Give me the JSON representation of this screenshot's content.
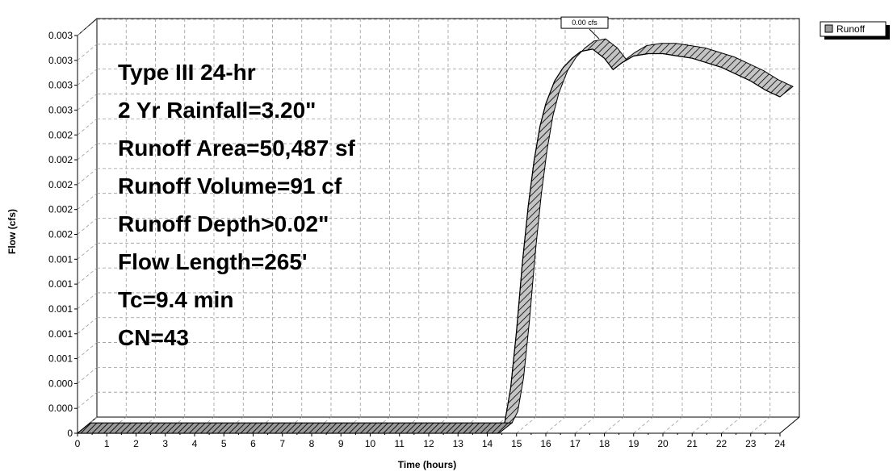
{
  "chart_data": {
    "type": "area",
    "title": "",
    "xlabel": "Time  (hours)",
    "ylabel": "Flow  (cfs)",
    "xlim": [
      0,
      24
    ],
    "x_ticks": [
      "0",
      "1",
      "2",
      "3",
      "4",
      "5",
      "6",
      "7",
      "8",
      "9",
      "10",
      "11",
      "12",
      "13",
      "14",
      "15",
      "16",
      "17",
      "18",
      "19",
      "20",
      "21",
      "22",
      "23",
      "24"
    ],
    "ylim": [
      0,
      0.0035
    ],
    "y_ticks": [
      "0",
      "0.000",
      "0.000",
      "0.001",
      "0.001",
      "0.001",
      "0.001",
      "0.001",
      "0.002",
      "0.002",
      "0.002",
      "0.002",
      "0.002",
      "0.003",
      "0.003",
      "0.003",
      "0.003"
    ],
    "grid": true,
    "legend_position": "top-right",
    "series": [
      {
        "name": "Runoff",
        "x": [
          0,
          14.4,
          14.6,
          14.8,
          15.0,
          15.2,
          15.4,
          15.6,
          15.8,
          16.0,
          16.3,
          16.6,
          16.9,
          17.2,
          17.6,
          18.0,
          18.3,
          18.6,
          19.0,
          19.5,
          20.0,
          20.5,
          21.0,
          21.5,
          22.0,
          22.5,
          23.0,
          23.5,
          24.0
        ],
        "y": [
          0,
          0,
          0.0001,
          0.0004,
          0.0009,
          0.0015,
          0.002,
          0.0024,
          0.0027,
          0.0029,
          0.0031,
          0.00322,
          0.0033,
          0.00336,
          0.00338,
          0.0033,
          0.0032,
          0.00326,
          0.00332,
          0.00334,
          0.00334,
          0.00332,
          0.0033,
          0.00326,
          0.00322,
          0.00316,
          0.0031,
          0.00302,
          0.00296
        ]
      }
    ],
    "annotations": [
      {
        "text": "0.00 cfs",
        "x": 17.6
      }
    ]
  },
  "info_text": [
    "Type III 24-hr",
    "2 Yr Rainfall=3.20\"",
    "Runoff Area=50,487 sf",
    "Runoff Volume=91 cf",
    "Runoff Depth>0.02\"",
    "Flow Length=265'",
    "Tc=9.4 min",
    "CN=43"
  ],
  "legend": {
    "label": "Runoff"
  },
  "colors": {
    "fill": "#b8b8b8",
    "grid": "#9a9a9a",
    "axis": "#000000"
  }
}
